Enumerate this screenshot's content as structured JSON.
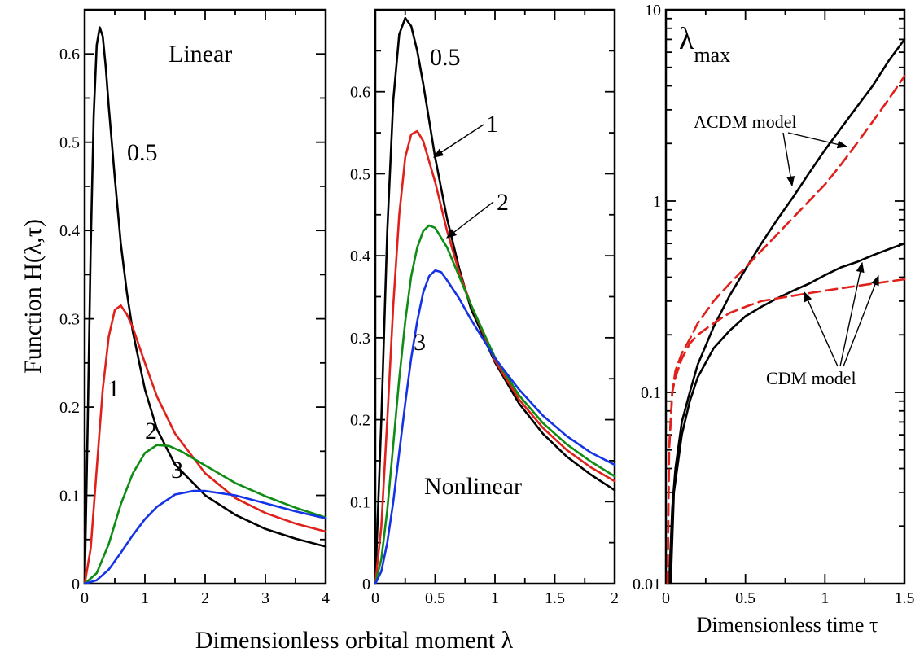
{
  "colors": {
    "0.5": "#000000",
    "1": "#e0201b",
    "2": "#0f8c14",
    "3": "#1432e6",
    "red_dashed": "#e0201b",
    "black": "#000000"
  },
  "figure": {
    "ylabel": "Function H(λ,τ)",
    "xlabel": "Dimensionless orbital moment λ"
  },
  "chart_data": [
    {
      "type": "line",
      "panel": "left",
      "title": "Linear",
      "xlim": [
        0,
        4
      ],
      "ylim": [
        0,
        0.65
      ],
      "xticks": [
        0,
        1,
        2,
        3,
        4
      ],
      "xtick_labels": [
        "0",
        "1",
        "2",
        "3",
        "4"
      ],
      "yticks": [
        0,
        0.1,
        0.2,
        0.3,
        0.4,
        0.5,
        0.6
      ],
      "ytick_labels": [
        "0",
        "0.1",
        "0.2",
        "0.3",
        "0.4",
        "0.5",
        "0.6"
      ],
      "series": [
        {
          "name": "0.5",
          "color_key": "0.5",
          "x": [
            0,
            0.05,
            0.1,
            0.15,
            0.2,
            0.25,
            0.3,
            0.35,
            0.4,
            0.5,
            0.6,
            0.7,
            0.8,
            1.0,
            1.2,
            1.5,
            2.0,
            2.5,
            3.0,
            3.5,
            4.0
          ],
          "y": [
            0,
            0.18,
            0.38,
            0.53,
            0.61,
            0.63,
            0.62,
            0.585,
            0.54,
            0.46,
            0.385,
            0.33,
            0.285,
            0.22,
            0.175,
            0.135,
            0.1,
            0.078,
            0.062,
            0.051,
            0.042
          ]
        },
        {
          "name": "1",
          "color_key": "1",
          "x": [
            0,
            0.1,
            0.2,
            0.3,
            0.4,
            0.5,
            0.6,
            0.7,
            0.8,
            1.0,
            1.2,
            1.5,
            2.0,
            2.5,
            3.0,
            3.5,
            4.0
          ],
          "y": [
            0,
            0.04,
            0.13,
            0.22,
            0.28,
            0.31,
            0.315,
            0.305,
            0.29,
            0.25,
            0.212,
            0.17,
            0.125,
            0.097,
            0.08,
            0.068,
            0.059
          ]
        },
        {
          "name": "2",
          "color_key": "2",
          "x": [
            0,
            0.2,
            0.4,
            0.6,
            0.8,
            1.0,
            1.2,
            1.4,
            1.6,
            1.8,
            2.0,
            2.5,
            3.0,
            3.5,
            4.0
          ],
          "y": [
            0,
            0.012,
            0.045,
            0.09,
            0.125,
            0.148,
            0.157,
            0.156,
            0.15,
            0.142,
            0.134,
            0.114,
            0.099,
            0.086,
            0.075
          ]
        },
        {
          "name": "3",
          "color_key": "3",
          "x": [
            0,
            0.2,
            0.4,
            0.6,
            0.8,
            1.0,
            1.2,
            1.5,
            1.8,
            2.0,
            2.5,
            3.0,
            3.5,
            4.0
          ],
          "y": [
            0,
            0.004,
            0.016,
            0.035,
            0.055,
            0.073,
            0.087,
            0.101,
            0.105,
            0.105,
            0.1,
            0.091,
            0.082,
            0.074
          ]
        }
      ],
      "labels": [
        "0.5",
        "1",
        "2",
        "3"
      ]
    },
    {
      "type": "line",
      "panel": "middle",
      "title": "Nonlinear",
      "xlim": [
        0,
        2
      ],
      "ylim": [
        0,
        0.7
      ],
      "xticks": [
        0,
        0.5,
        1,
        1.5,
        2
      ],
      "xtick_labels": [
        "0",
        "0.5",
        "1",
        "1.5",
        "2"
      ],
      "yticks": [
        0,
        0.1,
        0.2,
        0.3,
        0.4,
        0.5,
        0.6
      ],
      "ytick_labels": [
        "0",
        "0.1",
        "0.2",
        "0.3",
        "0.4",
        "0.5",
        "0.6"
      ],
      "series": [
        {
          "name": "0.5",
          "color_key": "0.5",
          "x": [
            0,
            0.05,
            0.1,
            0.15,
            0.2,
            0.25,
            0.3,
            0.35,
            0.4,
            0.5,
            0.6,
            0.7,
            0.8,
            1.0,
            1.2,
            1.4,
            1.6,
            1.8,
            2.0
          ],
          "y": [
            0,
            0.2,
            0.43,
            0.59,
            0.67,
            0.69,
            0.68,
            0.65,
            0.61,
            0.52,
            0.445,
            0.385,
            0.335,
            0.27,
            0.22,
            0.183,
            0.155,
            0.133,
            0.114
          ]
        },
        {
          "name": "1",
          "color_key": "1",
          "x": [
            0,
            0.05,
            0.1,
            0.15,
            0.2,
            0.25,
            0.3,
            0.35,
            0.4,
            0.5,
            0.6,
            0.7,
            0.8,
            1.0,
            1.2,
            1.4,
            1.6,
            1.8,
            2.0
          ],
          "y": [
            0,
            0.07,
            0.2,
            0.34,
            0.45,
            0.52,
            0.548,
            0.552,
            0.54,
            0.49,
            0.43,
            0.38,
            0.34,
            0.272,
            0.225,
            0.19,
            0.163,
            0.142,
            0.125
          ]
        },
        {
          "name": "2",
          "color_key": "2",
          "x": [
            0,
            0.05,
            0.1,
            0.15,
            0.2,
            0.25,
            0.3,
            0.35,
            0.4,
            0.45,
            0.5,
            0.6,
            0.7,
            0.8,
            1.0,
            1.2,
            1.4,
            1.6,
            1.8,
            2.0
          ],
          "y": [
            0,
            0.03,
            0.09,
            0.17,
            0.25,
            0.32,
            0.375,
            0.41,
            0.43,
            0.437,
            0.434,
            0.41,
            0.375,
            0.34,
            0.276,
            0.23,
            0.196,
            0.17,
            0.149,
            0.131
          ]
        },
        {
          "name": "3",
          "color_key": "3",
          "x": [
            0,
            0.05,
            0.1,
            0.15,
            0.2,
            0.25,
            0.3,
            0.35,
            0.4,
            0.45,
            0.5,
            0.55,
            0.6,
            0.7,
            0.8,
            1.0,
            1.2,
            1.4,
            1.6,
            1.8,
            2.0
          ],
          "y": [
            0,
            0.015,
            0.05,
            0.1,
            0.16,
            0.22,
            0.275,
            0.32,
            0.355,
            0.375,
            0.382,
            0.38,
            0.37,
            0.348,
            0.322,
            0.275,
            0.237,
            0.205,
            0.18,
            0.16,
            0.145
          ]
        }
      ],
      "labels": [
        "0.5",
        "1",
        "2",
        "3"
      ]
    },
    {
      "type": "line",
      "panel": "right",
      "title": "λmax",
      "xlabel": "Dimensionless time τ",
      "yscale": "log",
      "xlim": [
        0,
        1.5
      ],
      "ylim": [
        0.01,
        10
      ],
      "xticks": [
        0,
        0.5,
        1,
        1.5
      ],
      "xtick_labels": [
        "0",
        "0.5",
        "1",
        "1.5"
      ],
      "yticks": [
        0.01,
        0.1,
        1,
        10
      ],
      "ytick_labels": [
        "0.01",
        "0.1",
        "1",
        "10"
      ],
      "series": [
        {
          "model": "ΛCDM model",
          "style": "solid",
          "color_key": "black",
          "x": [
            0.02,
            0.04,
            0.06,
            0.1,
            0.15,
            0.2,
            0.3,
            0.4,
            0.5,
            0.6,
            0.7,
            0.8,
            0.9,
            1.0,
            1.1,
            1.2,
            1.3,
            1.4,
            1.5
          ],
          "y": [
            0.01,
            0.025,
            0.04,
            0.07,
            0.1,
            0.14,
            0.22,
            0.32,
            0.44,
            0.6,
            0.8,
            1.05,
            1.4,
            1.85,
            2.4,
            3.1,
            4.0,
            5.4,
            7.0
          ]
        },
        {
          "model": "ΛCDM model",
          "style": "dashed",
          "color_key": "red_dashed",
          "x": [
            0.01,
            0.02,
            0.04,
            0.06,
            0.1,
            0.15,
            0.2,
            0.3,
            0.4,
            0.5,
            0.6,
            0.7,
            0.8,
            0.9,
            1.0,
            1.1,
            1.2,
            1.3,
            1.4,
            1.5
          ],
          "y": [
            0.01,
            0.05,
            0.1,
            0.13,
            0.16,
            0.19,
            0.23,
            0.3,
            0.37,
            0.45,
            0.55,
            0.67,
            0.82,
            1.0,
            1.22,
            1.55,
            2.0,
            2.6,
            3.4,
            4.5
          ]
        },
        {
          "model": "CDM model",
          "style": "solid",
          "color_key": "black",
          "x": [
            0.03,
            0.05,
            0.1,
            0.15,
            0.2,
            0.3,
            0.4,
            0.5,
            0.6,
            0.7,
            0.8,
            0.9,
            1.0,
            1.1,
            1.2,
            1.3,
            1.4,
            1.5
          ],
          "y": [
            0.01,
            0.03,
            0.06,
            0.09,
            0.12,
            0.17,
            0.21,
            0.25,
            0.28,
            0.31,
            0.34,
            0.37,
            0.41,
            0.45,
            0.48,
            0.52,
            0.56,
            0.6
          ]
        },
        {
          "model": "CDM model",
          "style": "dashed",
          "color_key": "red_dashed",
          "x": [
            0.01,
            0.02,
            0.04,
            0.06,
            0.1,
            0.15,
            0.2,
            0.3,
            0.4,
            0.5,
            0.6,
            0.7,
            0.8,
            0.9,
            1.0,
            1.1,
            1.2,
            1.3,
            1.4,
            1.5
          ],
          "y": [
            0.01,
            0.05,
            0.1,
            0.12,
            0.15,
            0.18,
            0.2,
            0.23,
            0.26,
            0.28,
            0.3,
            0.31,
            0.32,
            0.33,
            0.34,
            0.35,
            0.36,
            0.37,
            0.38,
            0.39
          ]
        }
      ],
      "annotations": [
        "ΛCDM model",
        "CDM model"
      ]
    }
  ]
}
